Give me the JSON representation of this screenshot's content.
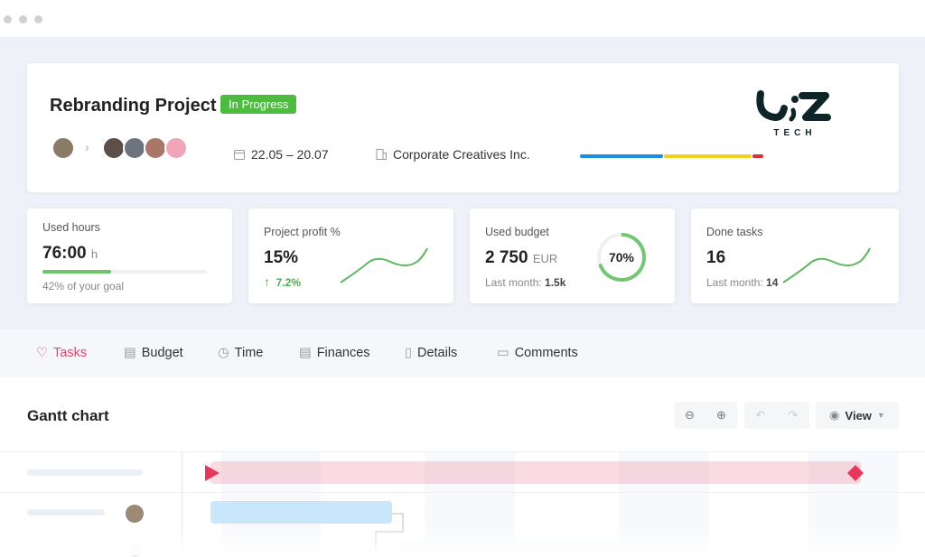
{
  "window": {
    "controls": [
      "close",
      "minimize",
      "maximize"
    ]
  },
  "project": {
    "title": "Rebranding Project",
    "status": "In Progress",
    "status_color": "#4cbb3f",
    "dates": "22.05 – 20.07",
    "client": "Corporate Creatives Inc.",
    "progress_segments": [
      {
        "color": "#1a8fe0",
        "share": 0.46
      },
      {
        "color": "#f2d11a",
        "share": 0.48
      },
      {
        "color": "#d93030",
        "share": 0.06
      }
    ],
    "logo": {
      "text": "UIZ",
      "subtext": "TECH"
    }
  },
  "stats": [
    {
      "label": "Used hours",
      "value": "76:00",
      "unit": "h",
      "sub": "42% of your goal",
      "progress": 42
    },
    {
      "label": "Project profit %",
      "value": "15%",
      "change": "7.2%",
      "trend": "up"
    },
    {
      "label": "Used budget",
      "value": "2 750",
      "unit": "EUR",
      "sub_label": "Last month:",
      "sub_value": "1.5k",
      "ring_percent": "70%",
      "ring_value": 70
    },
    {
      "label": "Done tasks",
      "value": "16",
      "sub_label": "Last month:",
      "sub_value": "14"
    }
  ],
  "tabs": [
    {
      "label": "Tasks",
      "icon": "check-heart-icon",
      "active": true
    },
    {
      "label": "Budget",
      "icon": "budget-icon"
    },
    {
      "label": "Time",
      "icon": "clock-icon"
    },
    {
      "label": "Finances",
      "icon": "finances-icon"
    },
    {
      "label": "Details",
      "icon": "document-icon"
    },
    {
      "label": "Comments",
      "icon": "comment-icon"
    }
  ],
  "gantt": {
    "title": "Gantt chart",
    "view_label": "View",
    "accent": "#e8365d",
    "task_color": "#c9e6fa"
  }
}
